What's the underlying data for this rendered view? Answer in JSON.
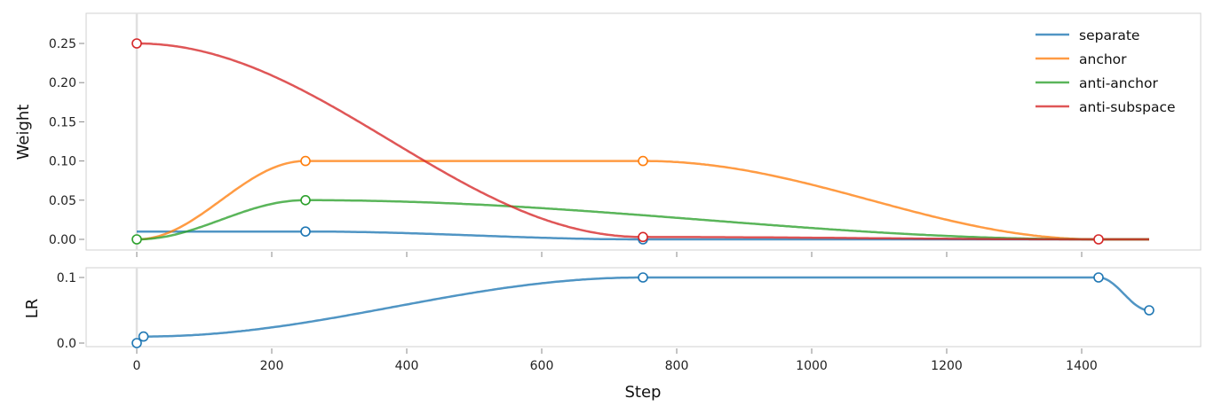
{
  "chart_data": [
    {
      "type": "line",
      "panel": "top",
      "ylabel": "Weight",
      "xlabel": "",
      "xlim": [
        -75,
        1575
      ],
      "ylim": [
        -0.013,
        0.289
      ],
      "yticks": [
        0.0,
        0.05,
        0.1,
        0.15,
        0.2,
        0.25
      ],
      "ytick_labels": [
        "0.00",
        "0.05",
        "0.10",
        "0.15",
        "0.20",
        "0.25"
      ],
      "xticks": [
        0,
        200,
        400,
        600,
        800,
        1000,
        1200,
        1400
      ],
      "interpolation": "cosine",
      "legend_position": "top-right",
      "series": [
        {
          "name": "separate",
          "color": "#1f77b4",
          "points": [
            [
              0,
              0.01
            ],
            [
              250,
              0.01
            ],
            [
              750,
              0.0
            ],
            [
              1500,
              0.0
            ]
          ],
          "markers": [
            [
              250,
              0.01
            ],
            [
              750,
              0.0
            ]
          ]
        },
        {
          "name": "anchor",
          "color": "#ff7f0e",
          "points": [
            [
              0,
              0.0
            ],
            [
              250,
              0.1
            ],
            [
              750,
              0.1
            ],
            [
              1425,
              0.0
            ],
            [
              1500,
              0.0
            ]
          ],
          "markers": [
            [
              250,
              0.1
            ],
            [
              750,
              0.1
            ]
          ]
        },
        {
          "name": "anti-anchor",
          "color": "#2ca02c",
          "points": [
            [
              0,
              0.0
            ],
            [
              250,
              0.05
            ],
            [
              1425,
              0.0
            ],
            [
              1500,
              0.0
            ]
          ],
          "markers": [
            [
              0,
              0.0
            ],
            [
              250,
              0.05
            ]
          ]
        },
        {
          "name": "anti-subspace",
          "color": "#d62728",
          "points": [
            [
              0,
              0.25
            ],
            [
              750,
              0.003
            ],
            [
              1425,
              0.0
            ],
            [
              1500,
              0.0
            ]
          ],
          "markers": [
            [
              0,
              0.25
            ],
            [
              750,
              0.003
            ],
            [
              1425,
              0.0
            ]
          ]
        }
      ]
    },
    {
      "type": "line",
      "panel": "bottom",
      "ylabel": "LR",
      "xlabel": "Step",
      "xlim": [
        -75,
        1575
      ],
      "ylim": [
        -0.006,
        0.113
      ],
      "yticks": [
        0.0,
        0.1
      ],
      "ytick_labels": [
        "0.0",
        "0.1"
      ],
      "xticks": [
        0,
        200,
        400,
        600,
        800,
        1000,
        1200,
        1400
      ],
      "xtick_labels": [
        "0",
        "200",
        "400",
        "600",
        "800",
        "1000",
        "1200",
        "1400"
      ],
      "interpolation": "cosine",
      "series": [
        {
          "name": "lr",
          "color": "#1f77b4",
          "points": [
            [
              10,
              0.01
            ],
            [
              750,
              0.1
            ],
            [
              1425,
              0.1
            ],
            [
              1500,
              0.05
            ]
          ],
          "markers": [
            [
              0,
              0.0
            ],
            [
              10,
              0.01
            ],
            [
              750,
              0.1
            ],
            [
              1425,
              0.1
            ],
            [
              1500,
              0.05
            ]
          ]
        }
      ]
    }
  ]
}
